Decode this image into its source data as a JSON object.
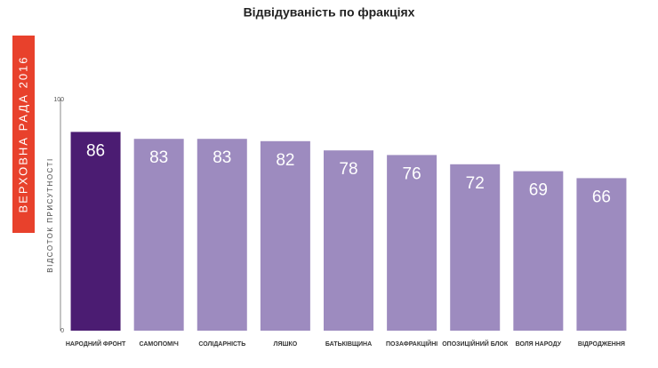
{
  "chart_data": {
    "type": "bar",
    "title": "Відвідуваність по фракціях",
    "banner": "ВЕРХОВНА РАДА 2016",
    "y_label": "ВІДСОТОК ПРИСУТНОСТІ",
    "categories": [
      "НАРОДНИЙ ФРОНТ",
      "САМОПОМІЧ",
      "СОЛІДАРНІСТЬ",
      "ЛЯШКО",
      "БАТЬКІВЩИНА",
      "ПОЗАФРАКЦІЙНІ",
      "ОПОЗИЦІЙНИЙ БЛОК",
      "ВОЛЯ НАРОДУ",
      "ВІДРОДЖЕННЯ"
    ],
    "values": [
      86,
      83,
      83,
      82,
      78,
      76,
      72,
      69,
      66
    ],
    "colors": [
      "#4b1c72",
      "#9d8bbf",
      "#9d8bbf",
      "#9d8bbf",
      "#9d8bbf",
      "#9d8bbf",
      "#9d8bbf",
      "#9d8bbf",
      "#9d8bbf"
    ],
    "ylim": [
      0,
      100
    ],
    "yticks": [
      0,
      100
    ],
    "grid": false
  }
}
